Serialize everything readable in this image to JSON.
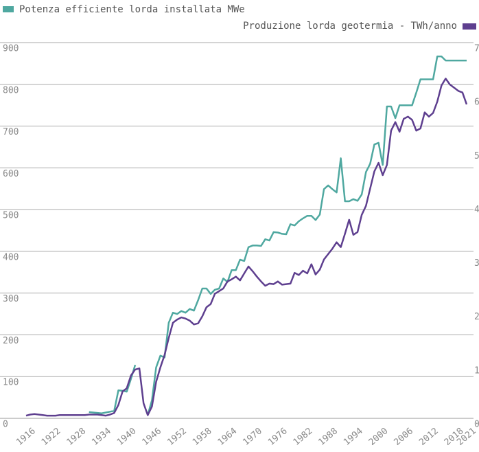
{
  "chart_data": {
    "type": "line",
    "x": [
      1916,
      1917,
      1918,
      1919,
      1920,
      1921,
      1922,
      1923,
      1924,
      1925,
      1926,
      1927,
      1928,
      1929,
      1930,
      1931,
      1932,
      1933,
      1934,
      1935,
      1936,
      1937,
      1938,
      1939,
      1940,
      1941,
      1942,
      1943,
      1944,
      1945,
      1946,
      1947,
      1948,
      1949,
      1950,
      1951,
      1952,
      1953,
      1954,
      1955,
      1956,
      1957,
      1958,
      1959,
      1960,
      1961,
      1962,
      1963,
      1964,
      1965,
      1966,
      1967,
      1968,
      1969,
      1970,
      1971,
      1972,
      1973,
      1974,
      1975,
      1976,
      1977,
      1978,
      1979,
      1980,
      1981,
      1982,
      1983,
      1984,
      1985,
      1986,
      1987,
      1988,
      1989,
      1990,
      1991,
      1992,
      1993,
      1994,
      1995,
      1996,
      1997,
      1998,
      1999,
      2000,
      2001,
      2002,
      2003,
      2004,
      2005,
      2006,
      2007,
      2008,
      2009,
      2010,
      2011,
      2012,
      2013,
      2014,
      2015,
      2016,
      2017,
      2018,
      2019,
      2020,
      2021
    ],
    "series": [
      {
        "name": "Potenza efficiente lorda installata MWe",
        "color": "#4fa8a0",
        "values": [
          null,
          null,
          null,
          null,
          null,
          null,
          null,
          null,
          null,
          null,
          null,
          null,
          null,
          null,
          null,
          15,
          14,
          13,
          12,
          14,
          16,
          18,
          67,
          66,
          64,
          95,
          128,
          null,
          null,
          8,
          43,
          122,
          150,
          146,
          229,
          253,
          250,
          257,
          253,
          262,
          258,
          283,
          311,
          311,
          298,
          308,
          311,
          335,
          327,
          355,
          355,
          380,
          377,
          410,
          414,
          414,
          413,
          429,
          426,
          446,
          445,
          442,
          441,
          465,
          462,
          472,
          479,
          485,
          485,
          475,
          488,
          549,
          558,
          549,
          541,
          623,
          520,
          520,
          525,
          521,
          536,
          590,
          610,
          656,
          660,
          607,
          747,
          747,
          719,
          750,
          750,
          750,
          750,
          780,
          812,
          812,
          812,
          812,
          867,
          867,
          857,
          857,
          857,
          857,
          857,
          857
        ]
      },
      {
        "name": "Produzione lorda geotermia - TWh/anno",
        "color": "#5e3f8f",
        "axis": "y2",
        "values": [
          0.05,
          0.07,
          0.08,
          0.07,
          0.06,
          0.05,
          0.05,
          0.05,
          0.06,
          0.06,
          0.06,
          0.06,
          0.06,
          0.06,
          0.06,
          0.07,
          0.07,
          0.07,
          0.06,
          0.05,
          0.07,
          0.1,
          0.25,
          0.5,
          0.56,
          0.8,
          0.91,
          0.93,
          0.28,
          0.06,
          0.22,
          0.68,
          0.95,
          1.18,
          1.5,
          1.78,
          1.84,
          1.88,
          1.86,
          1.82,
          1.75,
          1.77,
          1.9,
          2.07,
          2.13,
          2.32,
          2.37,
          2.42,
          2.55,
          2.59,
          2.64,
          2.57,
          2.7,
          2.83,
          2.74,
          2.64,
          2.55,
          2.47,
          2.51,
          2.5,
          2.55,
          2.49,
          2.5,
          2.51,
          2.71,
          2.67,
          2.75,
          2.7,
          2.87,
          2.68,
          2.77,
          2.96,
          3.06,
          3.16,
          3.28,
          3.19,
          3.44,
          3.7,
          3.42,
          3.47,
          3.79,
          3.96,
          4.28,
          4.6,
          4.76,
          4.53,
          4.72,
          5.36,
          5.52,
          5.34,
          5.58,
          5.62,
          5.56,
          5.36,
          5.4,
          5.7,
          5.62,
          5.69,
          5.9,
          6.2,
          6.33,
          6.22,
          6.16,
          6.1,
          6.07,
          5.85
        ]
      }
    ],
    "xlim": [
      1916,
      2021
    ],
    "xticks": [
      1916,
      1922,
      1928,
      1934,
      1940,
      1946,
      1952,
      1958,
      1964,
      1970,
      1976,
      1982,
      1988,
      1994,
      2000,
      2006,
      2012,
      2018,
      2021
    ],
    "ylim": [
      0,
      900
    ],
    "yticks": [
      0,
      100,
      200,
      300,
      400,
      500,
      600,
      700,
      800,
      900
    ],
    "y2lim": [
      0,
      7
    ],
    "y2ticks": [
      0,
      1,
      2,
      3,
      4,
      5,
      6,
      7
    ],
    "grid": true
  }
}
